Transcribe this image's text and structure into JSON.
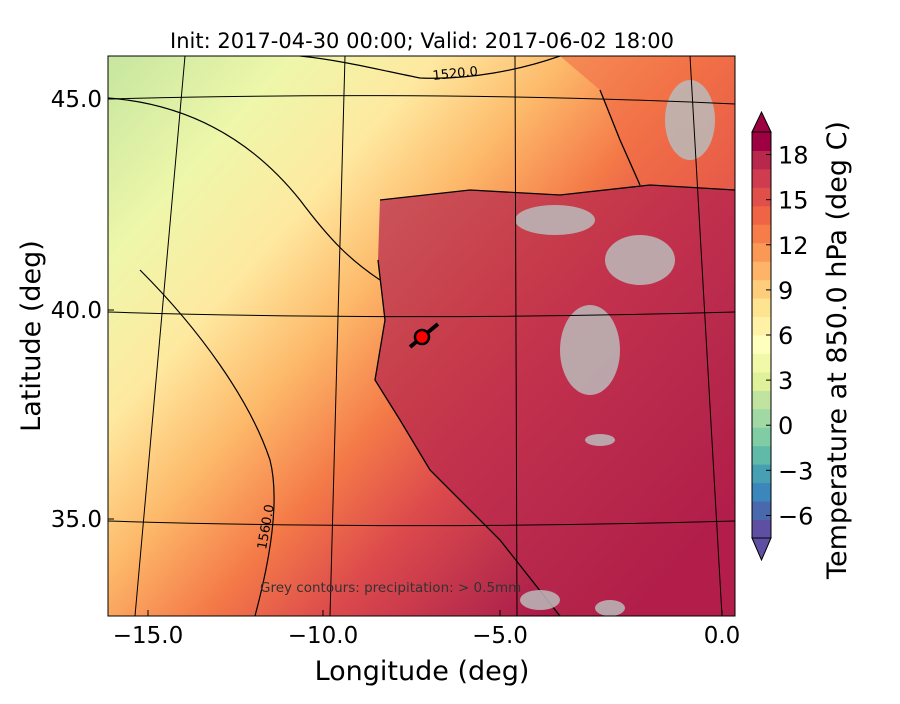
{
  "chart_data": {
    "type": "heatmap",
    "title": "Init: 2017-04-30 00:00; Valid: 2017-06-02 18:00",
    "xlabel": "Longitude (deg)",
    "ylabel": "Latitude (deg)",
    "xlim": [
      -16,
      0.2
    ],
    "ylim": [
      33,
      46
    ],
    "xticks": [
      -15.0,
      -10.0,
      -5.0,
      0.0
    ],
    "xtick_labels": [
      "−15.0",
      "−10.0",
      "−5.0",
      "0.0"
    ],
    "yticks": [
      45.0,
      40.0,
      35.0
    ],
    "ytick_labels": [
      "45.0",
      "40.0",
      "35.0"
    ],
    "contour_labels": [
      "1520.0",
      "1560.0"
    ],
    "annotation": "Grey contours: precipitation: > 0.5mm",
    "marker": {
      "lon": -7.6,
      "lat": 39.4,
      "color": "#ff0000"
    },
    "colorbar": {
      "label": "Temperature at 850.0 hPa (deg C)",
      "ticks": [
        18,
        15,
        12,
        9,
        6,
        3,
        0,
        -3,
        -6
      ],
      "tick_labels": [
        "18",
        "15",
        "12",
        "9",
        "6",
        "3",
        "0",
        "−3",
        "−6"
      ],
      "range": [
        -7.5,
        19.5
      ],
      "extend": "both",
      "colors": [
        "#5e4fa2",
        "#4a69ad",
        "#3b86bb",
        "#469fb3",
        "#61b9a7",
        "#7fcca5",
        "#a0d9a4",
        "#c0e49f",
        "#dff29a",
        "#f1f9a9",
        "#fefebd",
        "#fff2a7",
        "#fee390",
        "#fdcd7b",
        "#fdb468",
        "#fa9856",
        "#f67d4a",
        "#ee6445",
        "#e04f4a",
        "#cf3c4f",
        "#b8284c",
        "#9e0142"
      ]
    }
  }
}
